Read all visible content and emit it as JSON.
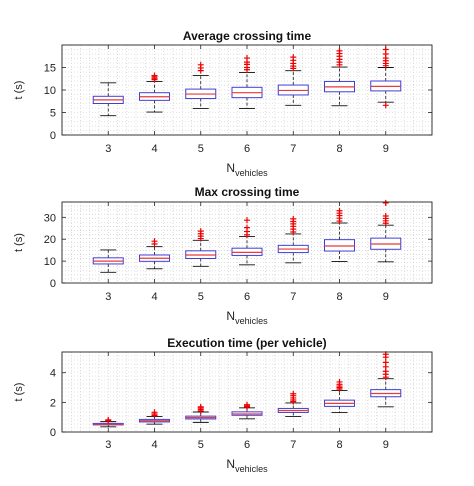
{
  "chart_data": [
    {
      "type": "box",
      "title": "Average crossing time",
      "xlabel_main": "N",
      "xlabel_sub": "vehicles",
      "ylabel": "t (s)",
      "ylim": [
        0,
        20
      ],
      "yticks": [
        0,
        5,
        10,
        15
      ],
      "categories": [
        "3",
        "4",
        "5",
        "6",
        "7",
        "8",
        "9"
      ],
      "grid": true,
      "boxes": [
        {
          "min": 4.3,
          "q1": 7.0,
          "median": 7.8,
          "q3": 8.6,
          "max": 11.6,
          "outliers": []
        },
        {
          "min": 5.1,
          "q1": 7.7,
          "median": 8.5,
          "q3": 9.4,
          "max": 11.9,
          "outliers": [
            12.3,
            12.6,
            12.9,
            13.2
          ]
        },
        {
          "min": 5.9,
          "q1": 8.1,
          "median": 9.1,
          "q3": 10.2,
          "max": 13.2,
          "outliers": [
            14.3,
            14.9,
            15.6
          ]
        },
        {
          "min": 5.9,
          "q1": 8.3,
          "median": 9.4,
          "q3": 10.6,
          "max": 13.9,
          "outliers": [
            14.5,
            15.0,
            15.7,
            16.2,
            17.1
          ]
        },
        {
          "min": 6.6,
          "q1": 8.9,
          "median": 9.9,
          "q3": 11.1,
          "max": 14.3,
          "outliers": [
            14.8,
            15.3,
            15.9,
            16.6,
            17.3
          ]
        },
        {
          "min": 6.5,
          "q1": 9.6,
          "median": 10.7,
          "q3": 11.9,
          "max": 15.1,
          "outliers": [
            15.6,
            16.2,
            16.8,
            17.5,
            18.1,
            18.7
          ]
        },
        {
          "min": 7.3,
          "q1": 9.8,
          "median": 10.8,
          "q3": 12.0,
          "max": 15.0,
          "outliers": [
            6.6,
            15.4,
            15.9,
            16.5,
            17.1,
            18.0,
            19.0
          ]
        }
      ]
    },
    {
      "type": "box",
      "title": "Max crossing time",
      "xlabel_main": "N",
      "xlabel_sub": "vehicles",
      "ylabel": "t (s)",
      "ylim": [
        0,
        37
      ],
      "yticks": [
        0,
        10,
        20,
        30
      ],
      "categories": [
        "3",
        "4",
        "5",
        "6",
        "7",
        "8",
        "9"
      ],
      "grid": true,
      "boxes": [
        {
          "min": 4.9,
          "q1": 8.7,
          "median": 10.0,
          "q3": 11.5,
          "max": 15.1,
          "outliers": []
        },
        {
          "min": 6.5,
          "q1": 9.9,
          "median": 11.3,
          "q3": 12.8,
          "max": 16.6,
          "outliers": [
            17.8,
            19.1
          ]
        },
        {
          "min": 7.6,
          "q1": 11.2,
          "median": 12.8,
          "q3": 14.7,
          "max": 19.5,
          "outliers": [
            20.3,
            21.4,
            22.5,
            23.7
          ]
        },
        {
          "min": 8.3,
          "q1": 12.6,
          "median": 14.0,
          "q3": 15.9,
          "max": 21.2,
          "outliers": [
            22.0,
            23.5,
            25.3,
            28.7
          ]
        },
        {
          "min": 9.2,
          "q1": 13.9,
          "median": 15.5,
          "q3": 17.2,
          "max": 22.4,
          "outliers": [
            23.3,
            24.6,
            25.9,
            27.0,
            28.1,
            29.3
          ]
        },
        {
          "min": 9.8,
          "q1": 14.6,
          "median": 16.9,
          "q3": 19.8,
          "max": 27.4,
          "outliers": [
            28.3,
            29.6,
            30.8,
            31.9,
            33.0
          ]
        },
        {
          "min": 9.7,
          "q1": 15.4,
          "median": 17.8,
          "q3": 20.5,
          "max": 26.4,
          "outliers": [
            27.3,
            28.4,
            29.5,
            30.6,
            36.6
          ]
        }
      ]
    },
    {
      "type": "box",
      "title": "Execution time (per vehicle)",
      "xlabel_main": "N",
      "xlabel_sub": "vehicles",
      "ylabel": "t (s)",
      "ylim": [
        0,
        5.4
      ],
      "yticks": [
        0,
        2,
        4
      ],
      "categories": [
        "3",
        "4",
        "5",
        "6",
        "7",
        "8",
        "9"
      ],
      "grid": true,
      "boxes": [
        {
          "min": 0.35,
          "q1": 0.48,
          "median": 0.52,
          "q3": 0.58,
          "max": 0.7,
          "outliers": [
            0.75,
            0.82
          ]
        },
        {
          "min": 0.53,
          "q1": 0.68,
          "median": 0.76,
          "q3": 0.85,
          "max": 1.05,
          "outliers": [
            1.12,
            1.22,
            1.33
          ]
        },
        {
          "min": 0.65,
          "q1": 0.88,
          "median": 0.97,
          "q3": 1.07,
          "max": 1.35,
          "outliers": [
            1.42,
            1.52,
            1.62,
            1.7
          ]
        },
        {
          "min": 0.89,
          "q1": 1.13,
          "median": 1.22,
          "q3": 1.36,
          "max": 1.63,
          "outliers": [
            1.68,
            1.75,
            1.84
          ]
        },
        {
          "min": 1.04,
          "q1": 1.32,
          "median": 1.45,
          "q3": 1.59,
          "max": 1.96,
          "outliers": [
            2.05,
            2.16,
            2.3,
            2.45,
            2.58
          ]
        },
        {
          "min": 1.31,
          "q1": 1.73,
          "median": 1.93,
          "q3": 2.15,
          "max": 2.8,
          "outliers": [
            2.9,
            3.0,
            3.1,
            3.22,
            3.38
          ]
        },
        {
          "min": 1.7,
          "q1": 2.38,
          "median": 2.6,
          "q3": 2.86,
          "max": 3.6,
          "outliers": [
            3.7,
            3.9,
            4.1,
            4.4,
            4.7,
            5.05,
            5.25
          ]
        }
      ]
    }
  ],
  "colors": {
    "box": "#3f3fd6",
    "median": "#e83a3a",
    "outlier": "#ee0000",
    "whisker": "#111111",
    "grid": "#c8c8c8"
  }
}
